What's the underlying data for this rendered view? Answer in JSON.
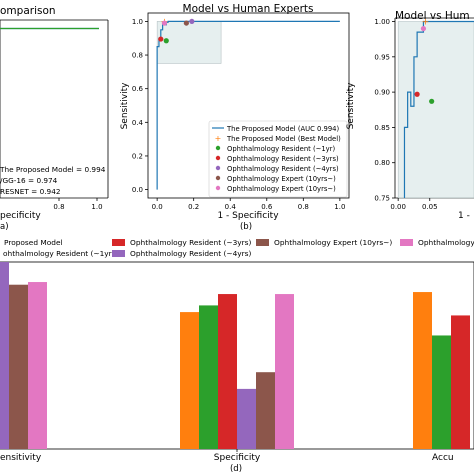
{
  "colors": {
    "model": "#1f77b4",
    "best_model": "#ff7f0e",
    "resident_1yr": "#2ca02c",
    "resident_3yrs": "#d62728",
    "resident_4yrs": "#9467bd",
    "expert_10yrs": "#8c564b",
    "expert_10yrs_plus": "#e377c2",
    "shade": "#dde9ea",
    "vgg": "#2ca02c"
  },
  "panel_a": {
    "title": "omparison",
    "xlabel": "pecificity",
    "caption": "a)",
    "legend": [
      "The Proposed Model = 0.994",
      "/GG-16 = 0.974",
      "RESNET = 0.942"
    ],
    "xticks": [
      "0.8",
      "1.0"
    ]
  },
  "panel_b": {
    "title": "Model vs Human Experts",
    "xlabel": "1 - Specificity",
    "ylabel": "Sensitivity",
    "caption": "(b)",
    "xticks": [
      "0.0",
      "0.2",
      "0.4",
      "0.6",
      "0.8",
      "1.0"
    ],
    "yticks": [
      "0.0",
      "0.2",
      "0.4",
      "0.6",
      "0.8",
      "1.0"
    ],
    "legend": [
      "The Proposed Model (AUC 0.994)",
      "The Proposed Model (Best Model)",
      "Ophthalmology Resident (~1yr)",
      "Ophthalmology Resident (~3yrs)",
      "Ophthalmology Resident (~4yrs)",
      "Ophthalmology Expert (10yrs~)",
      "Ophthalmology Expert (10yrs~)"
    ]
  },
  "panel_c": {
    "title": "Model vs Hum",
    "xlabel": "1 -",
    "ylabel": "Sensitivity",
    "xticks": [
      "0.00",
      "0.05"
    ],
    "yticks": [
      "0.75",
      "0.80",
      "0.85",
      "0.90",
      "0.95",
      "1.00"
    ]
  },
  "panel_d": {
    "legend": [
      "Proposed Model",
      "Ophthalmology Resident (~3yrs)",
      "Ophthalmology Expert (10yrs~)",
      "Ophthalmology E",
      "ohthalmology Resident (~1yr)",
      "Ophthalmology Resident (~4yrs)"
    ],
    "categories": [
      "ensitivity",
      "Specificity",
      "Accu"
    ],
    "caption": "(d)"
  },
  "chart_data": [
    {
      "type": "line",
      "panel": "a",
      "title": "omparison",
      "xlabel": "pecificity",
      "xlim": [
        0.45,
        1.05
      ],
      "ylim": [
        0.0,
        1.05
      ],
      "series": [
        {
          "name": "The Proposed Model = 0.994",
          "x": [
            0.45,
            1.0
          ],
          "y": [
            1.0,
            1.0
          ]
        },
        {
          "name": "/GG-16 = 0.974",
          "x": [
            0.45,
            1.0
          ],
          "y": [
            1.0,
            1.0
          ]
        }
      ]
    },
    {
      "type": "line",
      "panel": "b",
      "title": "Model vs Human Experts",
      "xlabel": "1 - Specificity",
      "ylabel": "Sensitivity",
      "xlim": [
        -0.05,
        1.05
      ],
      "ylim": [
        -0.05,
        1.05
      ],
      "roc": {
        "x": [
          0.0,
          0.0,
          0.01,
          0.01,
          0.02,
          0.02,
          0.03,
          0.03,
          0.05,
          0.05,
          0.06,
          0.06,
          1.0
        ],
        "y": [
          0.0,
          0.85,
          0.85,
          0.9,
          0.9,
          0.95,
          0.95,
          0.98,
          0.98,
          0.995,
          0.995,
          1.0,
          1.0
        ]
      },
      "zoom_region": {
        "x": [
          0.0,
          0.35
        ],
        "y": [
          0.75,
          1.0
        ]
      },
      "points": [
        {
          "name": "The Proposed Model (Best Model)",
          "x": 0.04,
          "y": 1.0,
          "marker": "plus",
          "color": "best_model"
        },
        {
          "name": "Ophthalmology Resident (~1yr)",
          "x": 0.05,
          "y": 0.885,
          "marker": "dot",
          "color": "resident_1yr"
        },
        {
          "name": "Ophthalmology Resident (~3yrs)",
          "x": 0.02,
          "y": 0.895,
          "marker": "dot",
          "color": "resident_3yrs"
        },
        {
          "name": "Ophthalmology Resident (~4yrs)",
          "x": 0.19,
          "y": 1.0,
          "marker": "dot",
          "color": "resident_4yrs"
        },
        {
          "name": "Ophthalmology Expert (10yrs~)",
          "x": 0.16,
          "y": 0.99,
          "marker": "dot",
          "color": "expert_10yrs"
        },
        {
          "name": "Ophthalmology Expert (10yrs~)",
          "x": 0.04,
          "y": 0.99,
          "marker": "dot",
          "color": "expert_10yrs_plus"
        }
      ]
    },
    {
      "type": "line",
      "panel": "c",
      "title": "Model vs Hum",
      "xlabel": "1 -",
      "ylabel": "Sensitivity",
      "xlim": [
        -0.005,
        0.12
      ],
      "ylim": [
        0.75,
        1.005
      ],
      "roc": {
        "x": [
          0.01,
          0.01,
          0.015,
          0.015,
          0.02,
          0.02,
          0.025,
          0.025,
          0.03,
          0.03,
          0.04,
          0.04,
          0.12
        ],
        "y": [
          0.75,
          0.85,
          0.85,
          0.9,
          0.9,
          0.88,
          0.88,
          0.95,
          0.95,
          0.985,
          0.985,
          1.0,
          1.0
        ]
      },
      "zoom_region": {
        "x": [
          0.0,
          0.12
        ],
        "y": [
          0.75,
          1.0
        ]
      },
      "points": [
        {
          "name": "The Proposed Model (Best Model)",
          "x": 0.043,
          "y": 1.0,
          "marker": "plus",
          "color": "best_model"
        },
        {
          "name": "Ophthalmology Resident (~1yr)",
          "x": 0.053,
          "y": 0.887,
          "marker": "dot",
          "color": "resident_1yr"
        },
        {
          "name": "Ophthalmology Resident (~3yrs)",
          "x": 0.03,
          "y": 0.897,
          "marker": "dot",
          "color": "resident_3yrs"
        },
        {
          "name": "Ophthalmology Expert (10yrs~)",
          "x": 0.04,
          "y": 0.99,
          "marker": "dot",
          "color": "expert_10yrs_plus"
        }
      ]
    },
    {
      "type": "bar",
      "panel": "d",
      "categories": [
        "ensitivity",
        "Specificity",
        "Accu"
      ],
      "ylim": [
        0.72,
        1.0
      ],
      "series": [
        {
          "name": "Proposed Model",
          "color": "best_model",
          "values": [
            null,
            0.925,
            0.955
          ]
        },
        {
          "name": "ohthalmology Resident (~1yr)",
          "color": "resident_1yr",
          "values": [
            null,
            0.935,
            0.89
          ]
        },
        {
          "name": "Ophthalmology Resident (~3yrs)",
          "color": "resident_3yrs",
          "values": [
            0.88,
            0.952,
            0.92
          ]
        },
        {
          "name": "Ophthalmology Resident (~4yrs)",
          "color": "resident_4yrs",
          "values": [
            1.0,
            0.81,
            null
          ]
        },
        {
          "name": "Ophthalmology Expert (10yrs~)",
          "color": "expert_10yrs",
          "values": [
            0.966,
            0.835,
            null
          ]
        },
        {
          "name": "Ophthalmology E",
          "color": "expert_10yrs_plus",
          "values": [
            0.97,
            0.952,
            null
          ]
        }
      ]
    }
  ]
}
